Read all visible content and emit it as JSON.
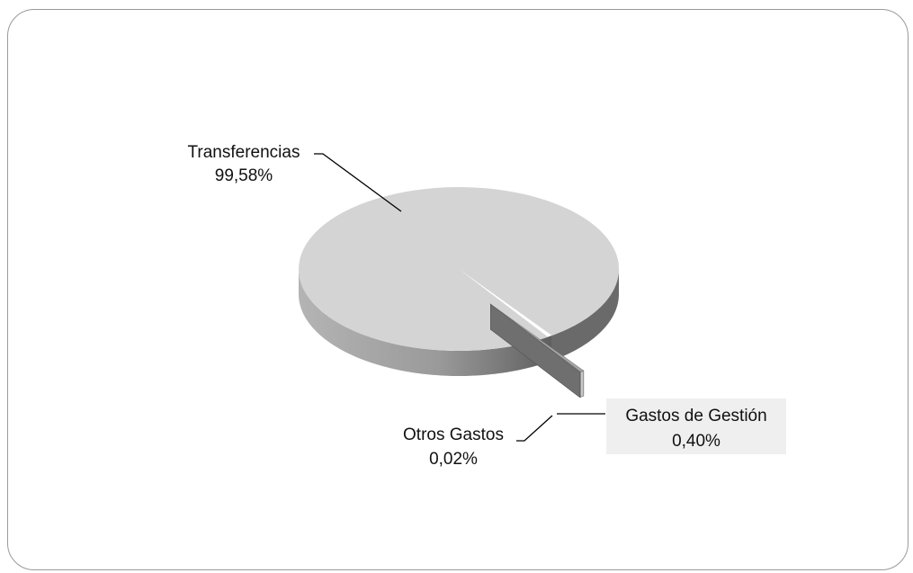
{
  "chart_data": {
    "type": "pie",
    "title": "",
    "slices": [
      {
        "label": "Transferencias",
        "value": 99.58,
        "value_text": "99,58%",
        "color": "#d4d4d4"
      },
      {
        "label": "Gastos de Gestión",
        "value": 0.4,
        "value_text": "0,40%",
        "color": "#a5a5a5"
      },
      {
        "label": "Otros Gastos",
        "value": 0.02,
        "value_text": "0,02%",
        "color": "#8c8c8c"
      }
    ],
    "style": "3d",
    "legend": "none"
  }
}
